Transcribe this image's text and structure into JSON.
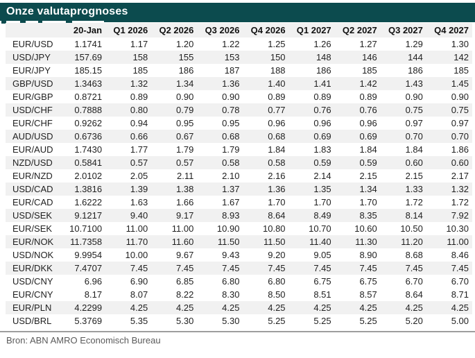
{
  "title_bar": {
    "title": "Onze valutaprognoses",
    "bg_color": "#0c4b4e",
    "text_color": "#ffffff"
  },
  "footer": {
    "source": "Bron: ABN AMRO Economisch Bureau"
  },
  "colors": {
    "accent_teal": "#0c4b4e",
    "row_band": "#f1f1f1",
    "table_text": "#1f1f1f",
    "source_text": "#5a5a5a",
    "rule_gray": "#9d9d9d"
  },
  "chart_data": {
    "type": "table",
    "title": "Onze valutaprognoses",
    "columns": [
      "20-Jan",
      "Q1 2026",
      "Q2 2026",
      "Q3 2026",
      "Q4 2026",
      "Q1 2027",
      "Q2 2027",
      "Q3 2027",
      "Q4 2027"
    ],
    "rows": [
      {
        "pair": "EUR/USD",
        "values": [
          "1.1741",
          "1.17",
          "1.20",
          "1.22",
          "1.25",
          "1.26",
          "1.27",
          "1.29",
          "1.30"
        ]
      },
      {
        "pair": "USD/JPY",
        "values": [
          "157.69",
          "158",
          "155",
          "153",
          "150",
          "148",
          "146",
          "144",
          "142"
        ]
      },
      {
        "pair": "EUR/JPY",
        "values": [
          "185.15",
          "185",
          "186",
          "187",
          "188",
          "186",
          "185",
          "186",
          "185"
        ]
      },
      {
        "pair": "GBP/USD",
        "values": [
          "1.3463",
          "1.32",
          "1.34",
          "1.36",
          "1.40",
          "1.41",
          "1.42",
          "1.43",
          "1.45"
        ]
      },
      {
        "pair": "EUR/GBP",
        "values": [
          "0.8721",
          "0.89",
          "0.90",
          "0.90",
          "0.89",
          "0.89",
          "0.89",
          "0.90",
          "0.90"
        ]
      },
      {
        "pair": "USD/CHF",
        "values": [
          "0.7888",
          "0.80",
          "0.79",
          "0.78",
          "0.77",
          "0.76",
          "0.76",
          "0.75",
          "0.75"
        ]
      },
      {
        "pair": "EUR/CHF",
        "values": [
          "0.9262",
          "0.94",
          "0.95",
          "0.95",
          "0.96",
          "0.96",
          "0.96",
          "0.97",
          "0.97"
        ]
      },
      {
        "pair": "AUD/USD",
        "values": [
          "0.6736",
          "0.66",
          "0.67",
          "0.68",
          "0.68",
          "0.69",
          "0.69",
          "0.70",
          "0.70"
        ]
      },
      {
        "pair": "EUR/AUD",
        "values": [
          "1.7430",
          "1.77",
          "1.79",
          "1.79",
          "1.84",
          "1.83",
          "1.84",
          "1.84",
          "1.86"
        ]
      },
      {
        "pair": "NZD/USD",
        "values": [
          "0.5841",
          "0.57",
          "0.57",
          "0.58",
          "0.58",
          "0.59",
          "0.59",
          "0.60",
          "0.60"
        ]
      },
      {
        "pair": "EUR/NZD",
        "values": [
          "2.0102",
          "2.05",
          "2.11",
          "2.10",
          "2.16",
          "2.14",
          "2.15",
          "2.15",
          "2.17"
        ]
      },
      {
        "pair": "USD/CAD",
        "values": [
          "1.3816",
          "1.39",
          "1.38",
          "1.37",
          "1.36",
          "1.35",
          "1.34",
          "1.33",
          "1.32"
        ]
      },
      {
        "pair": "EUR/CAD",
        "values": [
          "1.6222",
          "1.63",
          "1.66",
          "1.67",
          "1.70",
          "1.70",
          "1.70",
          "1.72",
          "1.72"
        ]
      },
      {
        "pair": "USD/SEK",
        "values": [
          "9.1217",
          "9.40",
          "9.17",
          "8.93",
          "8.64",
          "8.49",
          "8.35",
          "8.14",
          "7.92"
        ]
      },
      {
        "pair": "EUR/SEK",
        "values": [
          "10.7100",
          "11.00",
          "11.00",
          "10.90",
          "10.80",
          "10.70",
          "10.60",
          "10.50",
          "10.30"
        ]
      },
      {
        "pair": "EUR/NOK",
        "values": [
          "11.7358",
          "11.70",
          "11.60",
          "11.50",
          "11.50",
          "11.40",
          "11.30",
          "11.20",
          "11.00"
        ]
      },
      {
        "pair": "USD/NOK",
        "values": [
          "9.9954",
          "10.00",
          "9.67",
          "9.43",
          "9.20",
          "9.05",
          "8.90",
          "8.68",
          "8.46"
        ]
      },
      {
        "pair": "EUR/DKK",
        "values": [
          "7.4707",
          "7.45",
          "7.45",
          "7.45",
          "7.45",
          "7.45",
          "7.45",
          "7.45",
          "7.45"
        ]
      },
      {
        "pair": "USD/CNY",
        "values": [
          "6.96",
          "6.90",
          "6.85",
          "6.80",
          "6.80",
          "6.75",
          "6.75",
          "6.70",
          "6.70"
        ]
      },
      {
        "pair": "EUR/CNY",
        "values": [
          "8.17",
          "8.07",
          "8.22",
          "8.30",
          "8.50",
          "8.51",
          "8.57",
          "8.64",
          "8.71"
        ]
      },
      {
        "pair": "EUR/PLN",
        "values": [
          "4.2299",
          "4.25",
          "4.25",
          "4.25",
          "4.25",
          "4.25",
          "4.25",
          "4.25",
          "4.25"
        ]
      },
      {
        "pair": "USD/BRL",
        "values": [
          "5.3769",
          "5.35",
          "5.30",
          "5.30",
          "5.25",
          "5.25",
          "5.25",
          "5.20",
          "5.00"
        ]
      }
    ],
    "shaded_row_indices": [
      1,
      3,
      5,
      7,
      9,
      11,
      13,
      15,
      17,
      20
    ],
    "source": "Bron: ABN AMRO Economisch Bureau"
  }
}
